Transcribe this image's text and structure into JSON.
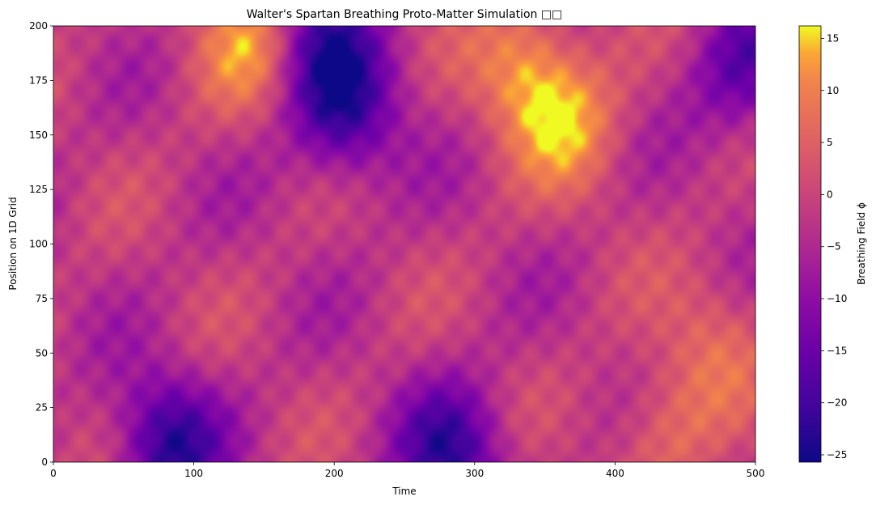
{
  "chart_data": {
    "type": "heatmap",
    "title": "Walter's Spartan Breathing Proto-Matter Simulation □□",
    "xlabel": "Time",
    "ylabel": "Position on 1D Grid",
    "xlim": [
      0,
      500
    ],
    "ylim": [
      0,
      200
    ],
    "xticks": [
      0,
      100,
      200,
      300,
      400,
      500
    ],
    "yticks": [
      0,
      25,
      50,
      75,
      100,
      125,
      150,
      175,
      200
    ],
    "colormap": "plasma",
    "colorbar": {
      "label": "Breathing Field ϕ",
      "range": [
        -25.7,
        16.2
      ],
      "ticks": [
        -25,
        -20,
        -15,
        -10,
        -5,
        0,
        5,
        10,
        15
      ]
    },
    "grid": false,
    "features": [
      {
        "kind": "min",
        "t": 82,
        "x": 8,
        "value": -25
      },
      {
        "kind": "min",
        "t": 208,
        "x": 160,
        "value": -23
      },
      {
        "kind": "min",
        "t": 283,
        "x": 3,
        "value": -24
      },
      {
        "kind": "min",
        "t": 190,
        "x": 195,
        "value": -20
      },
      {
        "kind": "min",
        "t": 492,
        "x": 180,
        "value": -19
      },
      {
        "kind": "max",
        "t": 140,
        "x": 193,
        "value": 14
      },
      {
        "kind": "max",
        "t": 337,
        "x": 180,
        "value": 15
      },
      {
        "kind": "max",
        "t": 368,
        "x": 155,
        "value": 12
      },
      {
        "kind": "max",
        "t": 435,
        "x": 15,
        "value": 8
      },
      {
        "kind": "max",
        "t": 470,
        "x": 55,
        "value": 7
      }
    ]
  }
}
